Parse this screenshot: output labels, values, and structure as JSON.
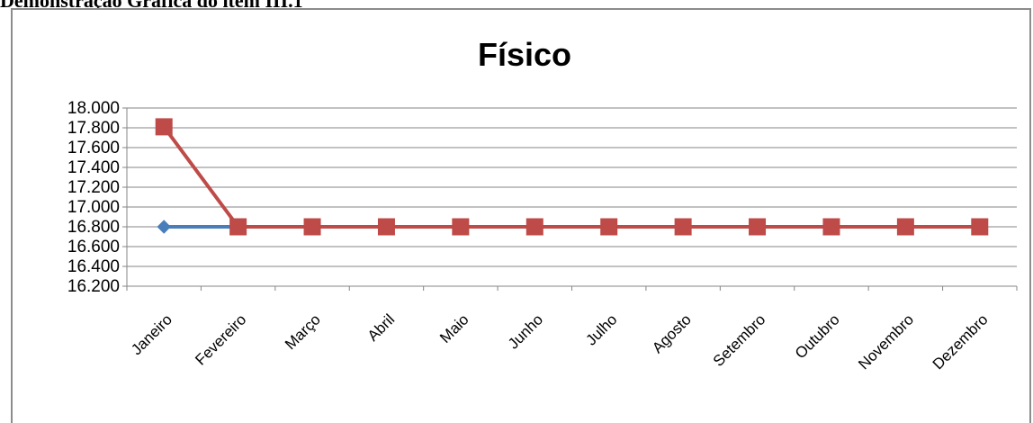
{
  "heading": "Demonstração Gráfica do item III.1",
  "chart_data": {
    "type": "line",
    "title": "Físico",
    "categories": [
      "Janeiro",
      "Fevereiro",
      "Março",
      "Abril",
      "Maio",
      "Junho",
      "Julho",
      "Agosto",
      "Setembro",
      "Outubro",
      "Novembro",
      "Dezembro"
    ],
    "y_ticks": [
      "16.200",
      "16.400",
      "16.600",
      "16.800",
      "17.000",
      "17.200",
      "17.400",
      "17.600",
      "17.800",
      "18.000"
    ],
    "ylim": [
      16200,
      18000
    ],
    "y_step": 200,
    "grid": true,
    "legend": "none",
    "series": [
      {
        "color": "#4a7ebb",
        "marker": "diamond",
        "values": [
          16800,
          16800,
          16800,
          16800,
          16800,
          16800,
          16800,
          16800,
          16800,
          16800,
          16800,
          16800
        ]
      },
      {
        "color": "#be4b48",
        "marker": "square",
        "values": [
          17810,
          16800,
          16800,
          16800,
          16800,
          16800,
          16800,
          16800,
          16800,
          16800,
          16800,
          16800
        ]
      }
    ]
  }
}
